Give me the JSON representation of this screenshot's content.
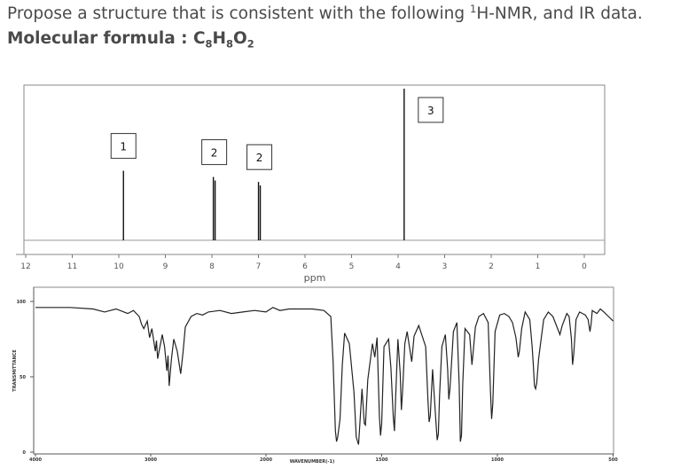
{
  "question": {
    "text_before": "Propose a structure that is consistent with the following ",
    "sup": "1",
    "text_after": "H-NMR, and IR data."
  },
  "formula": {
    "label": "Molecular formula : ",
    "parts": [
      "C",
      "8",
      "H",
      "8",
      "O",
      "2"
    ]
  },
  "chart_data": [
    {
      "type": "line",
      "name": "1H-NMR spectrum",
      "xlabel": "ppm",
      "xlim": [
        12,
        0
      ],
      "x_reversed": true,
      "x_ticks": [
        12,
        11,
        10,
        9,
        8,
        7,
        6,
        5,
        4,
        3,
        2,
        1,
        0
      ],
      "peaks": [
        {
          "ppm": 9.9,
          "height": 0.56,
          "label": "1",
          "shape": "singlet"
        },
        {
          "ppm": 7.95,
          "height": 0.51,
          "label": "2",
          "shape": "doublet"
        },
        {
          "ppm": 6.98,
          "height": 0.47,
          "label": "2",
          "shape": "doublet"
        },
        {
          "ppm": 3.87,
          "height": 1.3,
          "label": "3",
          "shape": "singlet"
        }
      ],
      "grid": false
    },
    {
      "type": "line",
      "name": "IR spectrum",
      "xlabel": "WAVENUMBER(-1)",
      "ylabel": "TRANSMITTANCE",
      "xlim": [
        4000,
        500
      ],
      "x_reversed": true,
      "ylim": [
        0,
        100
      ],
      "x_ticks": [
        4000,
        3000,
        2000,
        1500,
        1000,
        500
      ],
      "y_ticks": [
        0,
        50,
        100
      ],
      "points": [
        [
          4000,
          96
        ],
        [
          3700,
          96
        ],
        [
          3500,
          95
        ],
        [
          3400,
          93
        ],
        [
          3300,
          95
        ],
        [
          3200,
          92
        ],
        [
          3150,
          94
        ],
        [
          3100,
          90
        ],
        [
          3080,
          85
        ],
        [
          3060,
          82
        ],
        [
          3030,
          87
        ],
        [
          3010,
          76
        ],
        [
          2990,
          82
        ],
        [
          2960,
          67
        ],
        [
          2950,
          74
        ],
        [
          2940,
          62
        ],
        [
          2920,
          70
        ],
        [
          2900,
          78
        ],
        [
          2880,
          70
        ],
        [
          2860,
          54
        ],
        [
          2850,
          64
        ],
        [
          2840,
          44
        ],
        [
          2820,
          62
        ],
        [
          2800,
          75
        ],
        [
          2770,
          67
        ],
        [
          2740,
          52
        ],
        [
          2720,
          66
        ],
        [
          2700,
          83
        ],
        [
          2650,
          90
        ],
        [
          2600,
          92
        ],
        [
          2550,
          91
        ],
        [
          2500,
          93
        ],
        [
          2400,
          94
        ],
        [
          2300,
          92
        ],
        [
          2200,
          93
        ],
        [
          2100,
          94
        ],
        [
          2000,
          93
        ],
        [
          1970,
          96
        ],
        [
          1940,
          94
        ],
        [
          1900,
          95
        ],
        [
          1800,
          95
        ],
        [
          1750,
          94
        ],
        [
          1720,
          90
        ],
        [
          1710,
          60
        ],
        [
          1700,
          14
        ],
        [
          1695,
          7
        ],
        [
          1690,
          10
        ],
        [
          1680,
          22
        ],
        [
          1670,
          58
        ],
        [
          1660,
          79
        ],
        [
          1640,
          72
        ],
        [
          1620,
          40
        ],
        [
          1610,
          10
        ],
        [
          1600,
          5
        ],
        [
          1595,
          17
        ],
        [
          1585,
          42
        ],
        [
          1575,
          19
        ],
        [
          1570,
          18
        ],
        [
          1560,
          48
        ],
        [
          1540,
          72
        ],
        [
          1530,
          63
        ],
        [
          1520,
          76
        ],
        [
          1510,
          24
        ],
        [
          1505,
          11
        ],
        [
          1500,
          19
        ],
        [
          1490,
          70
        ],
        [
          1470,
          75
        ],
        [
          1460,
          56
        ],
        [
          1450,
          23
        ],
        [
          1445,
          14
        ],
        [
          1440,
          36
        ],
        [
          1430,
          75
        ],
        [
          1420,
          52
        ],
        [
          1415,
          28
        ],
        [
          1410,
          40
        ],
        [
          1400,
          72
        ],
        [
          1390,
          80
        ],
        [
          1370,
          60
        ],
        [
          1360,
          77
        ],
        [
          1340,
          84
        ],
        [
          1310,
          70
        ],
        [
          1300,
          34
        ],
        [
          1295,
          20
        ],
        [
          1290,
          24
        ],
        [
          1280,
          55
        ],
        [
          1265,
          19
        ],
        [
          1260,
          8
        ],
        [
          1255,
          12
        ],
        [
          1250,
          38
        ],
        [
          1240,
          70
        ],
        [
          1225,
          78
        ],
        [
          1215,
          55
        ],
        [
          1210,
          35
        ],
        [
          1205,
          42
        ],
        [
          1190,
          80
        ],
        [
          1175,
          86
        ],
        [
          1165,
          45
        ],
        [
          1160,
          7
        ],
        [
          1155,
          11
        ],
        [
          1150,
          45
        ],
        [
          1140,
          82
        ],
        [
          1120,
          78
        ],
        [
          1110,
          58
        ],
        [
          1105,
          66
        ],
        [
          1095,
          83
        ],
        [
          1080,
          90
        ],
        [
          1060,
          92
        ],
        [
          1040,
          86
        ],
        [
          1030,
          40
        ],
        [
          1025,
          22
        ],
        [
          1020,
          32
        ],
        [
          1010,
          80
        ],
        [
          990,
          91
        ],
        [
          970,
          92
        ],
        [
          950,
          90
        ],
        [
          935,
          86
        ],
        [
          920,
          76
        ],
        [
          910,
          63
        ],
        [
          905,
          67
        ],
        [
          895,
          82
        ],
        [
          880,
          93
        ],
        [
          860,
          88
        ],
        [
          850,
          70
        ],
        [
          845,
          58
        ],
        [
          840,
          44
        ],
        [
          835,
          42
        ],
        [
          830,
          46
        ],
        [
          822,
          62
        ],
        [
          812,
          74
        ],
        [
          800,
          88
        ],
        [
          780,
          93
        ],
        [
          760,
          90
        ],
        [
          740,
          82
        ],
        [
          730,
          78
        ],
        [
          720,
          84
        ],
        [
          700,
          92
        ],
        [
          690,
          90
        ],
        [
          680,
          75
        ],
        [
          675,
          58
        ],
        [
          670,
          65
        ],
        [
          660,
          88
        ],
        [
          645,
          93
        ],
        [
          620,
          91
        ],
        [
          608,
          88
        ],
        [
          600,
          80
        ],
        [
          595,
          85
        ],
        [
          590,
          94
        ],
        [
          570,
          92
        ],
        [
          555,
          95
        ],
        [
          540,
          93
        ],
        [
          520,
          90
        ],
        [
          500,
          87
        ]
      ],
      "grid": false
    }
  ]
}
